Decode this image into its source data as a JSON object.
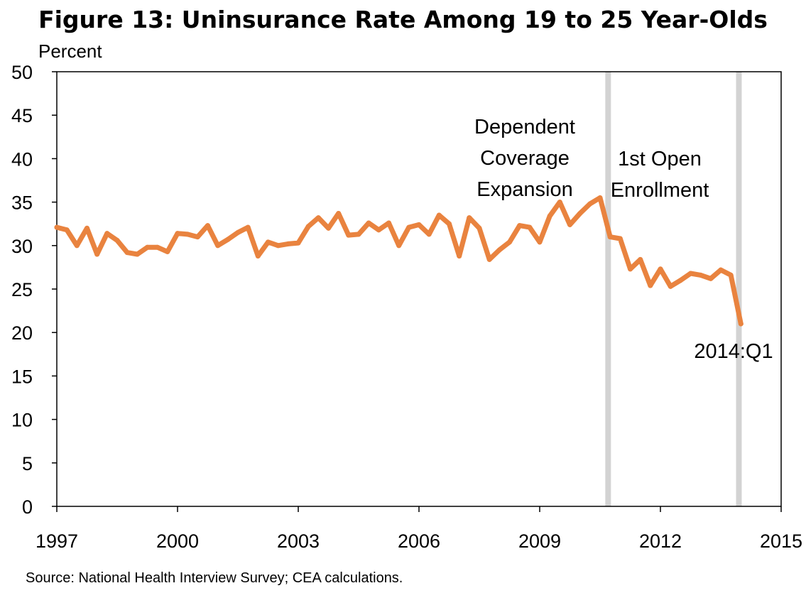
{
  "chart_data": {
    "type": "line",
    "title": "Figure 13: Uninsurance Rate Among 19 to 25 Year-Olds",
    "ylabel": "Percent",
    "xlim": [
      1997,
      2015
    ],
    "ylim": [
      0,
      50
    ],
    "yticks": [
      0,
      5,
      10,
      15,
      20,
      25,
      30,
      35,
      40,
      45,
      50
    ],
    "xticks": [
      1997,
      2000,
      2003,
      2006,
      2009,
      2012,
      2015
    ],
    "grid": false,
    "series_color": "#E9833F",
    "marker_color": "#D3D3D3",
    "series": [
      {
        "x": [
          1997.0,
          1997.25,
          1997.5,
          1997.75,
          1998.0,
          1998.25,
          1998.5,
          1998.75,
          1999.0,
          1999.25,
          1999.5,
          1999.75,
          2000.0,
          2000.25,
          2000.5,
          2000.75,
          2001.0,
          2001.25,
          2001.5,
          2001.75,
          2002.0,
          2002.25,
          2002.5,
          2002.75,
          2003.0,
          2003.25,
          2003.5,
          2003.75,
          2004.0,
          2004.25,
          2004.5,
          2004.75,
          2005.0,
          2005.25,
          2005.5,
          2005.75,
          2006.0,
          2006.25,
          2006.5,
          2006.75,
          2007.0,
          2007.25,
          2007.5,
          2007.75,
          2008.0,
          2008.25,
          2008.5,
          2008.75,
          2009.0,
          2009.25,
          2009.5,
          2009.75,
          2010.0,
          2010.25,
          2010.5,
          2010.75,
          2011.0,
          2011.25,
          2011.5,
          2011.75,
          2012.0,
          2012.25,
          2012.5,
          2012.75,
          2013.0,
          2013.25,
          2013.5,
          2013.75,
          2014.0
        ],
        "values": [
          32.1,
          31.8,
          30.0,
          32.0,
          29.0,
          31.4,
          30.6,
          29.2,
          29.0,
          29.8,
          29.8,
          29.3,
          31.4,
          31.3,
          31.0,
          32.3,
          30.0,
          30.7,
          31.5,
          32.1,
          28.8,
          30.4,
          30.0,
          30.2,
          30.3,
          32.2,
          33.2,
          32.0,
          33.7,
          31.2,
          31.3,
          32.6,
          31.8,
          32.6,
          30.0,
          32.1,
          32.4,
          31.3,
          33.5,
          32.5,
          28.8,
          33.2,
          32.0,
          28.4,
          29.5,
          30.4,
          32.3,
          32.1,
          30.4,
          33.4,
          35.0,
          32.4,
          33.7,
          34.8,
          35.5,
          31.0,
          30.8,
          27.3,
          28.4,
          25.4,
          27.3,
          25.3,
          26.0,
          26.8,
          26.6,
          26.2,
          27.2,
          26.6,
          21.0
        ]
      }
    ],
    "event_markers": [
      {
        "x": 2010.7,
        "label_lines": [
          "Dependent",
          "Coverage",
          "Expansion"
        ]
      },
      {
        "x": 2013.95,
        "label_lines": [
          "1st Open",
          "Enrollment"
        ]
      }
    ],
    "end_label": "2014:Q1"
  },
  "footer": {
    "source": "Source: National Health Interview Survey; CEA calculations."
  }
}
